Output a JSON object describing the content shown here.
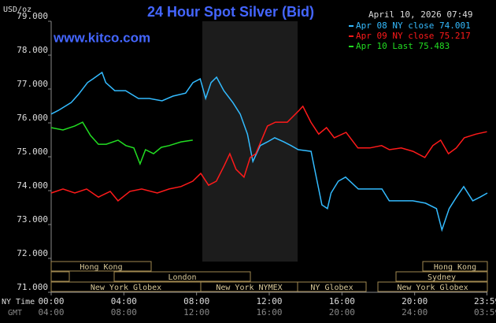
{
  "chart_data": {
    "type": "line",
    "title": "24 Hour Spot Silver (Bid)",
    "y_unit": "USD/oz",
    "timestamp": "April 10, 2026 07:49",
    "site": "www.kitco.com",
    "x_label": "NY Time",
    "x2_label": "GMT",
    "xlim": [
      0,
      24
    ],
    "ylim": [
      71,
      79
    ],
    "yticks": [
      {
        "value": 71,
        "label": "71.000"
      },
      {
        "value": 72,
        "label": "72.000"
      },
      {
        "value": 73,
        "label": "73.000"
      },
      {
        "value": 74,
        "label": "74.000"
      },
      {
        "value": 75,
        "label": "75.000"
      },
      {
        "value": 76,
        "label": "76.000"
      },
      {
        "value": 77,
        "label": "77.000"
      },
      {
        "value": 78,
        "label": "78.000"
      },
      {
        "value": 79,
        "label": "79.000"
      }
    ],
    "xticks": [
      {
        "value": 0,
        "label": "00:00"
      },
      {
        "value": 4,
        "label": "04:00"
      },
      {
        "value": 8,
        "label": "08:00"
      },
      {
        "value": 12,
        "label": "12:00"
      },
      {
        "value": 16,
        "label": "16:00"
      },
      {
        "value": 20,
        "label": "20:00"
      },
      {
        "value": 23.98,
        "label": "23:59"
      }
    ],
    "x2tick_labels": [
      "04:00",
      "08:00",
      "12:00",
      "16:00",
      "20:00",
      "24:00",
      "03:59"
    ],
    "sessions": [
      "Hong Kong",
      "London",
      "New York Globex",
      "New York NYMEX",
      "NY Globex",
      "Hong Kong",
      "Sydney",
      "New York Globex"
    ],
    "series": [
      {
        "name": "Apr 08 NY close 74.001",
        "color": "#33bbff",
        "x": [
          0,
          0.4,
          1.1,
          1.5,
          2.0,
          2.3,
          2.8,
          3.0,
          3.5,
          4.1,
          4.8,
          5.4,
          6.1,
          6.7,
          7.4,
          7.8,
          8.2,
          8.5,
          8.8,
          9.1,
          9.5,
          10.0,
          10.4,
          10.8,
          11.1,
          11.5,
          11.9,
          12.3,
          12.8,
          13.2,
          13.6,
          14.3,
          14.5,
          14.9,
          15.2,
          15.4,
          15.8,
          16.2,
          16.9,
          17.5,
          18.2,
          18.6,
          19.3,
          19.9,
          20.6,
          21.2,
          21.5,
          21.9,
          22.3,
          22.7,
          23.2,
          23.6,
          24.0
        ],
        "values": [
          76.26,
          76.37,
          76.6,
          76.84,
          77.19,
          77.3,
          77.49,
          77.19,
          76.95,
          76.95,
          76.72,
          76.72,
          76.65,
          76.79,
          76.88,
          77.19,
          77.3,
          76.72,
          77.19,
          77.35,
          76.95,
          76.6,
          76.26,
          75.67,
          74.86,
          75.33,
          75.44,
          75.56,
          75.44,
          75.33,
          75.21,
          75.16,
          74.63,
          73.58,
          73.47,
          73.93,
          74.28,
          74.4,
          74.05,
          74.05,
          74.05,
          73.7,
          73.7,
          73.7,
          73.63,
          73.47,
          72.84,
          73.47,
          73.81,
          74.12,
          73.7,
          73.81,
          73.93
        ]
      },
      {
        "name": "Apr 09 NY close 75.217",
        "color": "#ff1a1a",
        "x": [
          0,
          0.65,
          1.3,
          1.95,
          2.6,
          3.25,
          3.68,
          4.33,
          4.98,
          5.84,
          6.49,
          7.14,
          7.79,
          8.23,
          8.66,
          9.09,
          9.52,
          9.83,
          10.17,
          10.61,
          10.95,
          11.26,
          11.9,
          12.34,
          12.99,
          13.64,
          13.85,
          14.29,
          14.72,
          15.15,
          15.58,
          16.23,
          16.88,
          17.53,
          18.18,
          18.61,
          19.26,
          19.91,
          20.56,
          21.0,
          21.43,
          21.86,
          22.29,
          22.73,
          23.38,
          23.98
        ],
        "values": [
          73.93,
          74.05,
          73.93,
          74.05,
          73.81,
          73.98,
          73.7,
          73.98,
          74.05,
          73.93,
          74.05,
          74.12,
          74.28,
          74.51,
          74.16,
          74.28,
          74.74,
          75.09,
          74.63,
          74.4,
          74.98,
          75.09,
          75.91,
          76.02,
          76.02,
          76.37,
          76.49,
          76.02,
          75.67,
          75.86,
          75.56,
          75.72,
          75.26,
          75.26,
          75.33,
          75.21,
          75.26,
          75.16,
          74.98,
          75.33,
          75.49,
          75.09,
          75.26,
          75.56,
          75.67,
          75.74
        ]
      },
      {
        "name": "Apr 10 Last 75.483",
        "color": "#22dd22",
        "x": [
          0,
          0.65,
          1.3,
          1.73,
          2.16,
          2.6,
          3.03,
          3.68,
          4.11,
          4.55,
          4.89,
          5.19,
          5.63,
          6.06,
          6.49,
          7.14,
          7.79
        ],
        "values": [
          75.86,
          75.79,
          75.91,
          76.02,
          75.63,
          75.37,
          75.37,
          75.49,
          75.33,
          75.26,
          74.79,
          75.21,
          75.09,
          75.28,
          75.33,
          75.44,
          75.49
        ]
      }
    ]
  }
}
